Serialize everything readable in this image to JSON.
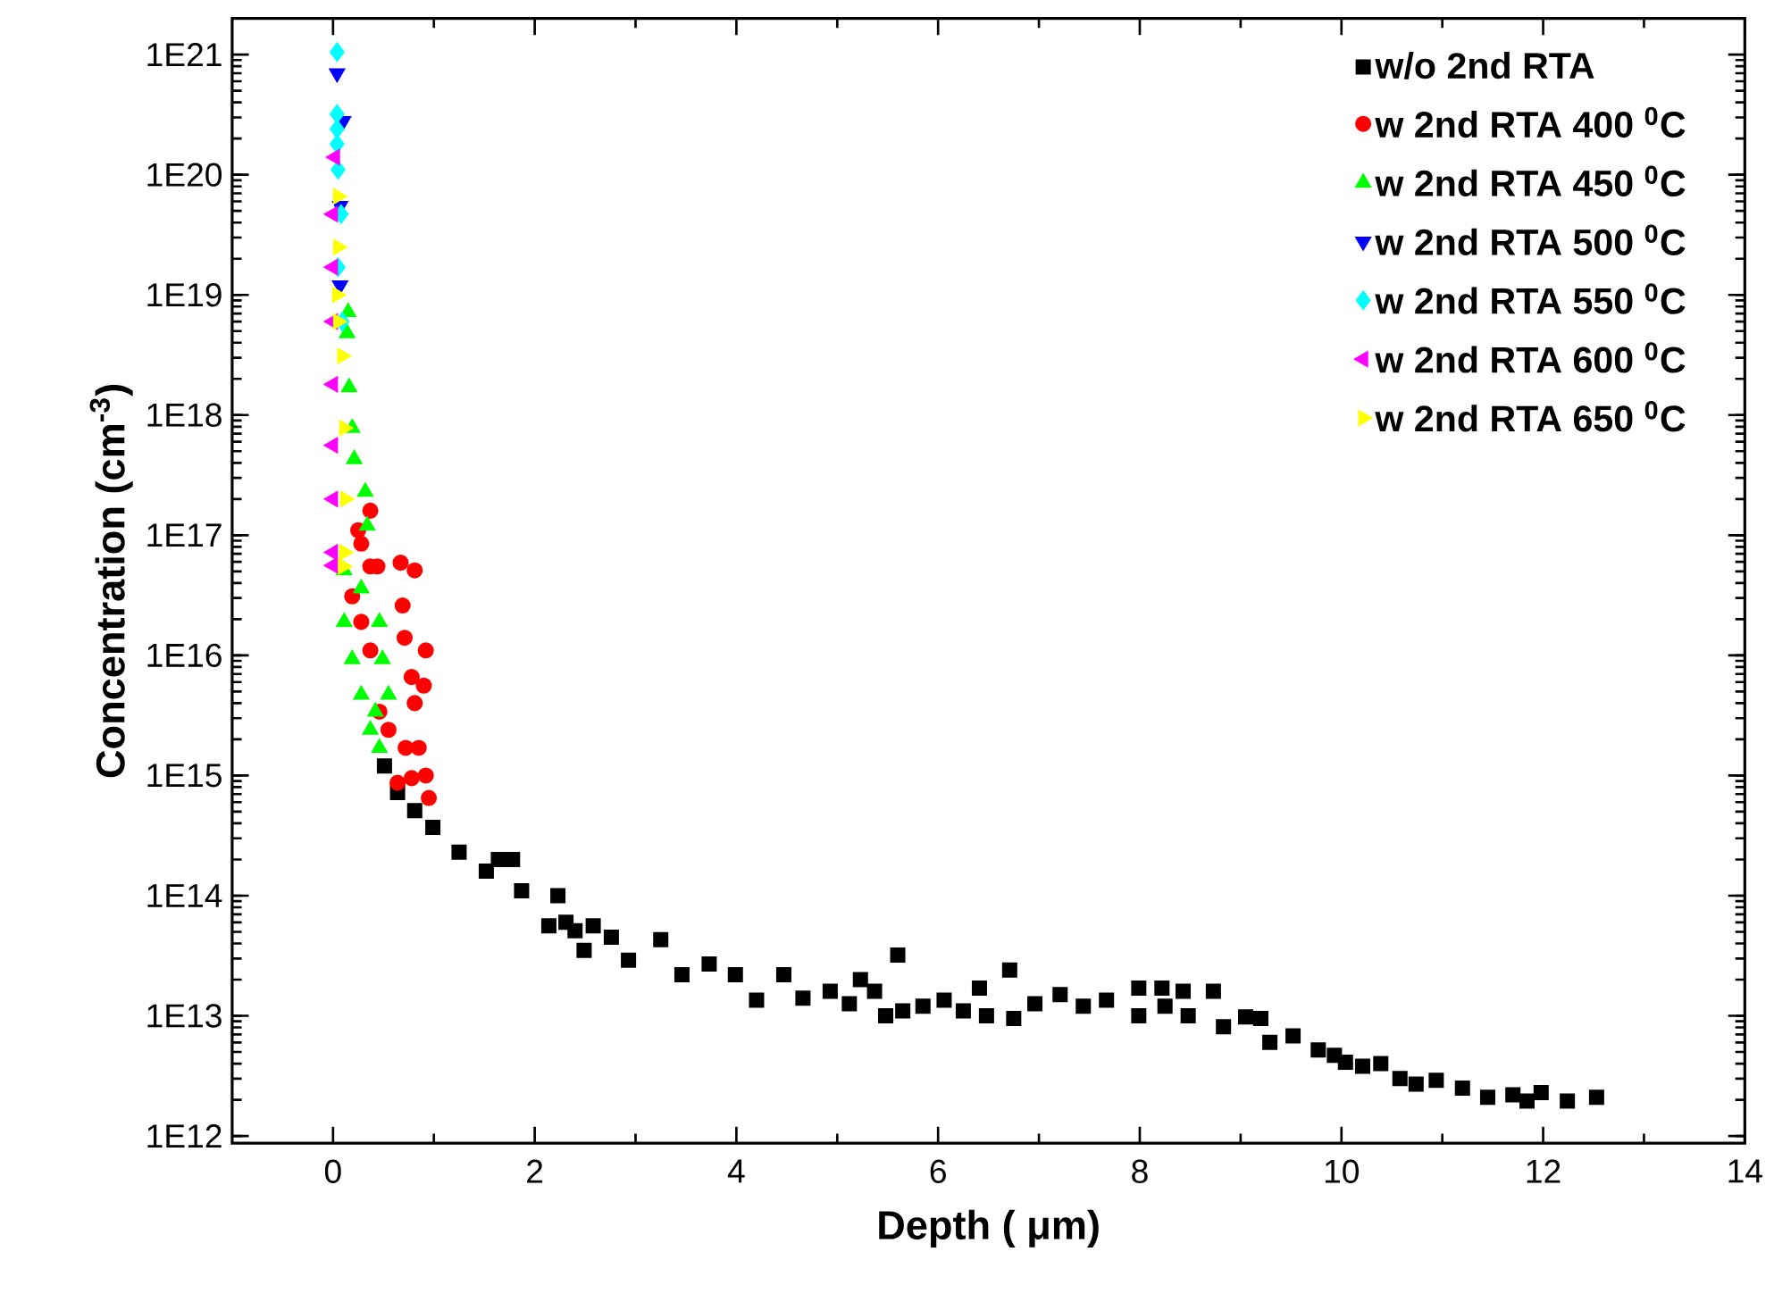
{
  "chart_data": {
    "type": "scatter",
    "xlabel": "Depth ( μm)",
    "ylabel": "Concentration  (cm$^{-3}$)",
    "log": "y",
    "xlim": [
      -1,
      14
    ],
    "xticks": [
      0,
      2,
      4,
      6,
      8,
      10,
      12,
      14
    ],
    "ylim": [
      870000000000.0,
      2e+21
    ],
    "yticks": [
      {
        "value": 1000000000000.0,
        "label": "1E12"
      },
      {
        "value": 10000000000000.0,
        "label": "1E13"
      },
      {
        "value": 100000000000000.0,
        "label": "1E14"
      },
      {
        "value": 1000000000000000.0,
        "label": "1E15"
      },
      {
        "value": 1e+16,
        "label": "1E16"
      },
      {
        "value": 1e+17,
        "label": "1E17"
      },
      {
        "value": 1e+18,
        "label": "1E18"
      },
      {
        "value": 1e+19,
        "label": "1E19"
      },
      {
        "value": 1e+20,
        "label": "1E20"
      },
      {
        "value": 1e+21,
        "label": "1E21"
      }
    ],
    "legend": "top right",
    "grid": false,
    "series": [
      {
        "name": "w/o 2nd RTA",
        "color": "#000000",
        "marker": "square",
        "x": [
          0.51,
          0.64,
          0.81,
          0.99,
          1.25,
          1.52,
          1.64,
          1.78,
          1.87,
          2.14,
          2.23,
          2.31,
          2.4,
          2.49,
          2.58,
          2.76,
          2.93,
          3.25,
          3.46,
          3.73,
          3.99,
          4.2,
          4.47,
          4.66,
          4.93,
          5.12,
          5.23,
          5.37,
          5.48,
          5.6,
          5.65,
          5.85,
          6.06,
          6.25,
          6.41,
          6.48,
          6.71,
          6.75,
          6.96,
          7.21,
          7.44,
          7.67,
          7.99,
          7.99,
          8.22,
          8.25,
          8.43,
          8.48,
          8.73,
          8.83,
          9.05,
          9.2,
          9.29,
          9.52,
          9.77,
          9.93,
          10.04,
          10.21,
          10.39,
          10.58,
          10.74,
          10.94,
          11.2,
          11.45,
          11.7,
          11.84,
          11.98,
          12.24,
          12.53
        ],
        "values": [
          1200000000000000.0,
          720000000000000.0,
          510000000000000.0,
          370000000000000.0,
          230000000000000.0,
          160000000000000.0,
          200000000000000.0,
          200000000000000.0,
          110000000000000.0,
          56000000000000.0,
          100000000000000.0,
          60000000000000.0,
          51000000000000.0,
          35000000000000.0,
          56000000000000.0,
          45000000000000.0,
          29000000000000.0,
          43000000000000.0,
          22000000000000.0,
          27000000000000.0,
          22000000000000.0,
          13500000000000.0,
          22000000000000.0,
          14000000000000.0,
          16000000000000.0,
          12600000000000.0,
          20000000000000.0,
          16000000000000.0,
          10000000000000.0,
          32000000000000.0,
          11000000000000.0,
          12000000000000.0,
          13500000000000.0,
          11000000000000.0,
          17000000000000.0,
          10000000000000.0,
          24000000000000.0,
          9500000000000.0,
          12600000000000.0,
          15000000000000.0,
          12000000000000.0,
          13500000000000.0,
          17000000000000.0,
          10000000000000.0,
          17000000000000.0,
          12000000000000.0,
          16000000000000.0,
          10000000000000.0,
          16000000000000.0,
          8100000000000.0,
          9800000000000.0,
          9500000000000.0,
          6000000000000.0,
          6800000000000.0,
          5200000000000.0,
          4700000000000.0,
          4100000000000.0,
          3800000000000.0,
          4000000000000.0,
          3000000000000.0,
          2700000000000.0,
          2900000000000.0,
          2500000000000.0,
          2100000000000.0,
          2200000000000.0,
          1950000000000.0,
          2300000000000.0,
          1950000000000.0,
          2100000000000.0
        ]
      },
      {
        "name": "w 2nd RTA 400 $^{0}$C",
        "color": "#ff0000",
        "marker": "circle",
        "x": [
          0.37,
          0.25,
          0.28,
          0.44,
          0.81,
          0.67,
          0.37,
          0.19,
          0.69,
          0.28,
          0.71,
          0.37,
          0.92,
          0.9,
          0.78,
          0.81,
          0.46,
          0.55,
          0.72,
          0.85,
          0.78,
          0.92,
          0.64,
          0.95
        ],
        "values": [
          1.6e+17,
          1.1e+17,
          8.5e+16,
          5.5e+16,
          5.1e+16,
          5.9e+16,
          5.5e+16,
          3.1e+16,
          2.6e+16,
          1.9e+16,
          1.4e+16,
          1.1e+16,
          1.1e+16,
          5600000000000000.0,
          6600000000000000.0,
          4000000000000000.0,
          3400000000000000.0,
          2400000000000000.0,
          1700000000000000.0,
          1700000000000000.0,
          950000000000000.0,
          1000000000000000.0,
          870000000000000.0,
          650000000000000.0
        ]
      },
      {
        "name": "w 2nd RTA 450 $^{0}$C",
        "color": "#00ff00",
        "marker": "triangle",
        "x": [
          0.15,
          0.14,
          0.16,
          0.19,
          0.21,
          0.32,
          0.34,
          0.11,
          0.28,
          0.11,
          0.46,
          0.19,
          0.49,
          0.28,
          0.55,
          0.42,
          0.37,
          0.46
        ],
        "values": [
          7.2e+18,
          4.8e+18,
          1.7e+18,
          7.8e+17,
          4.3e+17,
          2.3e+17,
          1.2e+17,
          5.1e+16,
          3.6e+16,
          1.9e+16,
          1.9e+16,
          9300000000000000.0,
          9300000000000000.0,
          4700000000000000.0,
          4700000000000000.0,
          3400000000000000.0,
          2400000000000000.0,
          1700000000000000.0
        ]
      },
      {
        "name": "w 2nd RTA 500 $^{0}$C",
        "color": "#0000ff",
        "marker": "triangle-down",
        "x": [
          0.04,
          0.1,
          0.07,
          0.07
        ],
        "values": [
          7e+20,
          2.8e+20,
          5.5e+19,
          1.2e+19
        ]
      },
      {
        "name": "w 2nd RTA 550 $^{0}$C",
        "color": "#00ffff",
        "marker": "diamond",
        "x": [
          0.04,
          0.04,
          0.04,
          0.04,
          0.05,
          0.08,
          0.05,
          0.09
        ],
        "values": [
          1.05e+21,
          3.2e+20,
          2.4e+20,
          1.8e+20,
          1.1e+20,
          4.7e+19,
          1.7e+19,
          6e+18
        ]
      },
      {
        "name": "w 2nd RTA 600 $^{0}$C",
        "color": "#ff00ff",
        "marker": "triangle-left",
        "x": [
          0.02,
          0.0,
          0.0,
          0.0,
          0.0,
          0.0,
          0.0,
          0.0,
          0.0
        ],
        "values": [
          1.4e+20,
          4.7e+19,
          1.7e+19,
          6e+18,
          1.8e+18,
          5.6e+17,
          2e+17,
          7.2e+16,
          5.6e+16
        ]
      },
      {
        "name": "w 2nd RTA 650 $^{0}$C",
        "color": "#ffff00",
        "marker": "triangle-right",
        "x": [
          0.05,
          0.05,
          0.04,
          0.05,
          0.09,
          0.11,
          0.12,
          0.11,
          0.1
        ],
        "values": [
          6.6e+19,
          2.5e+19,
          1e+19,
          6e+18,
          3.1e+18,
          7.8e+17,
          2e+17,
          7.2e+16,
          5.5e+16
        ]
      }
    ]
  }
}
